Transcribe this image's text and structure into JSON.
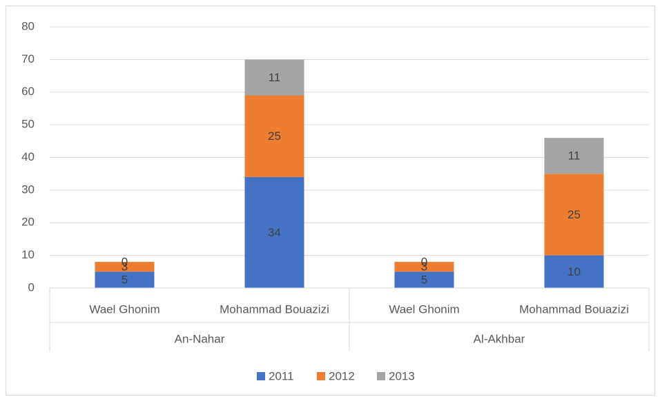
{
  "chart_data": {
    "type": "stacked_bar",
    "categories": [
      "Wael Ghonim",
      "Mohammad Bouazizi",
      "Wael Ghonim",
      "Mohammad Bouazizi"
    ],
    "groups": [
      "An-Nahar",
      "Al-Akhbar"
    ],
    "series": [
      {
        "name": "2011",
        "color": "#4472c4",
        "values": [
          5,
          34,
          5,
          10
        ]
      },
      {
        "name": "2012",
        "color": "#ed7d31",
        "values": [
          3,
          25,
          3,
          25
        ]
      },
      {
        "name": "2013",
        "color": "#a5a5a5",
        "values": [
          0,
          11,
          0,
          11
        ]
      }
    ],
    "ylim": [
      0,
      80
    ],
    "yticks": [
      0,
      10,
      20,
      30,
      40,
      50,
      60,
      70,
      80
    ],
    "grid": true,
    "legend": "bottom"
  }
}
